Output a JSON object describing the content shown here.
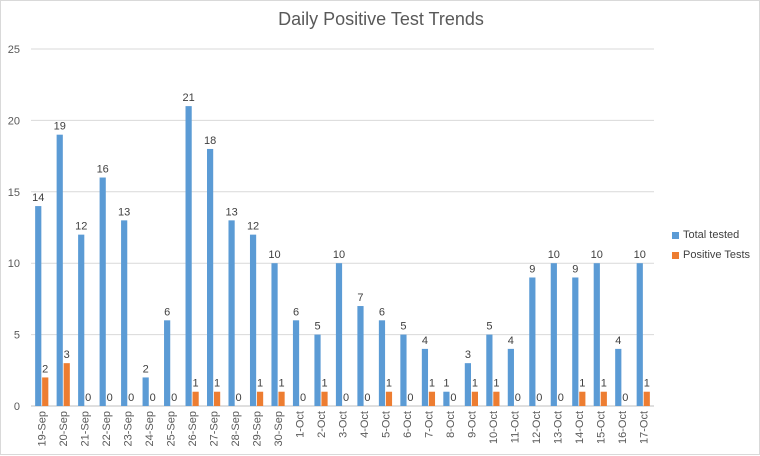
{
  "chart_data": {
    "type": "bar",
    "title": "Daily Positive Test Trends",
    "xlabel": "",
    "ylabel": "",
    "ylim": [
      0,
      25
    ],
    "yticks": [
      0,
      5,
      10,
      15,
      20,
      25
    ],
    "grid": true,
    "legend_position": "right",
    "categories": [
      "19-Sep",
      "20-Sep",
      "21-Sep",
      "22-Sep",
      "23-Sep",
      "24-Sep",
      "25-Sep",
      "26-Sep",
      "27-Sep",
      "28-Sep",
      "29-Sep",
      "30-Sep",
      "1-Oct",
      "2-Oct",
      "3-Oct",
      "4-Oct",
      "5-Oct",
      "6-Oct",
      "7-Oct",
      "8-Oct",
      "9-Oct",
      "10-Oct",
      "11-Oct",
      "12-Oct",
      "13-Oct",
      "14-Oct",
      "15-Oct",
      "16-Oct",
      "17-Oct"
    ],
    "series": [
      {
        "name": "Total tested",
        "color": "#5b9bd5",
        "values": [
          14,
          19,
          12,
          16,
          13,
          2,
          6,
          21,
          18,
          13,
          12,
          10,
          6,
          5,
          10,
          7,
          6,
          5,
          4,
          1,
          3,
          5,
          4,
          9,
          10,
          9,
          10,
          4,
          10
        ]
      },
      {
        "name": "Positive Tests",
        "color": "#ed7d31",
        "values": [
          2,
          3,
          0,
          0,
          0,
          0,
          0,
          1,
          1,
          0,
          1,
          1,
          0,
          1,
          0,
          0,
          1,
          0,
          1,
          0,
          1,
          1,
          0,
          0,
          0,
          1,
          1,
          0,
          1
        ]
      }
    ]
  }
}
